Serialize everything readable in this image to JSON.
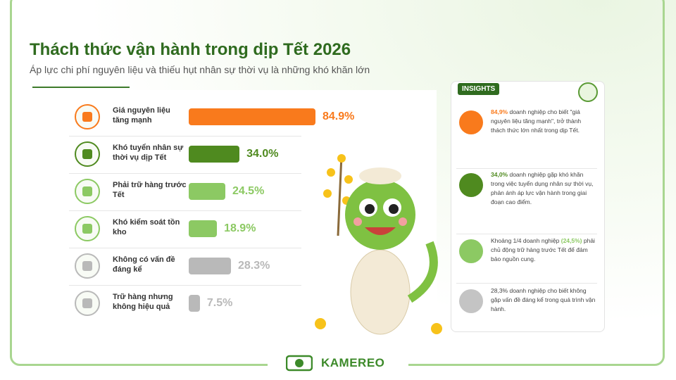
{
  "title": "Thách thức vận hành trong dịp Tết 2026",
  "subtitle": "Áp lực chi phí nguyên liệu và thiếu hụt nhân sự thời vụ là những khó khăn lớn",
  "chart_data": {
    "type": "bar",
    "orientation": "horizontal",
    "categories": [
      "Giá nguyên liệu tăng mạnh",
      "Khó tuyển nhân sự thời vụ dịp Tết",
      "Phải trữ hàng trước Tết",
      "Khó kiểm soát tồn kho",
      "Không có vấn đề đáng kể",
      "Trữ hàng nhưng không hiệu quả"
    ],
    "values": [
      84.9,
      34.0,
      24.5,
      18.9,
      28.3,
      7.5
    ],
    "value_labels": [
      "84.9%",
      "34.0%",
      "24.5%",
      "18.9%",
      "28.3%",
      "7.5%"
    ],
    "colors": [
      "#f97a1c",
      "#4f8a1f",
      "#8cc963",
      "#8cc963",
      "#b9b9b9",
      "#b9b9b9"
    ]
  },
  "insights": {
    "label": "INSIGHTS",
    "items": [
      {
        "segments": [
          {
            "text": "84,9%",
            "emphasis": true
          },
          {
            "text": " doanh nghiệp cho biết \"giá nguyên liệu tăng mạnh\", trở thành thách thức lớn nhất trong dịp Tết.",
            "emphasis": false
          }
        ],
        "color": "#f97a1c"
      },
      {
        "segments": [
          {
            "text": "34,0%",
            "emphasis": true
          },
          {
            "text": " doanh nghiệp gặp khó khăn trong việc tuyển dụng nhân sự thời vụ, phản ánh áp lực vận hành trong giai đoạn cao điểm.",
            "emphasis": false
          }
        ],
        "color": "#4f8a1f"
      },
      {
        "segments": [
          {
            "text": "Khoảng 1/4 doanh nghiệp ",
            "emphasis": false
          },
          {
            "text": "(24,5%)",
            "emphasis": true
          },
          {
            "text": " phải chủ động trữ hàng trước Tết để đảm bảo nguồn cung.",
            "emphasis": false
          }
        ],
        "color": "#8cc963"
      },
      {
        "segments": [
          {
            "text": "28,3% doanh nghiệp cho biết không gặp vấn đề đáng kể trong quá trình vận hành.",
            "emphasis": false
          }
        ],
        "color": "#c4c4c4"
      }
    ]
  },
  "brand": "KAMEREO"
}
